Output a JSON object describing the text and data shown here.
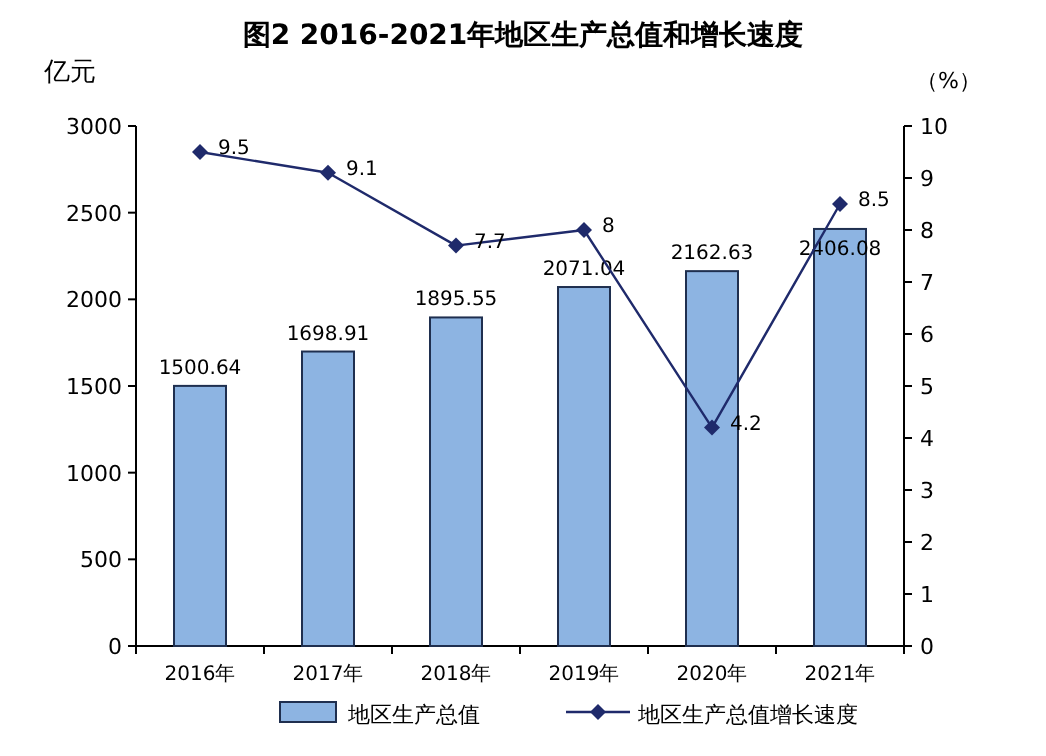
{
  "chart_data": {
    "type": "bar",
    "title": "图2 2016-2021年地区生产总值和增长速度",
    "ylabel": "亿元",
    "y2label": "（%）",
    "categories": [
      "2016年",
      "2017年",
      "2018年",
      "2019年",
      "2020年",
      "2021年"
    ],
    "series": [
      {
        "name": "地区生产总值",
        "color": "#8db4e2",
        "values": [
          1500.64,
          1698.91,
          1895.55,
          2071.04,
          2162.63,
          2406.08
        ]
      },
      {
        "name": "地区生产总值增长速度",
        "type": "line",
        "axis": "y2",
        "color": "#1f2a6b",
        "values": [
          9.5,
          9.1,
          7.7,
          8,
          4.2,
          8.5
        ]
      }
    ],
    "ylim": [
      0,
      3000
    ],
    "yticks": [
      0,
      500,
      1000,
      1500,
      2000,
      2500,
      3000
    ],
    "y2lim": [
      0,
      10
    ],
    "y2ticks": [
      0,
      1,
      2,
      3,
      4,
      5,
      6,
      7,
      8,
      9,
      10
    ],
    "data_labels": true,
    "legend": "bottom",
    "marker": "diamond",
    "line_style": "solid",
    "grid": false
  }
}
